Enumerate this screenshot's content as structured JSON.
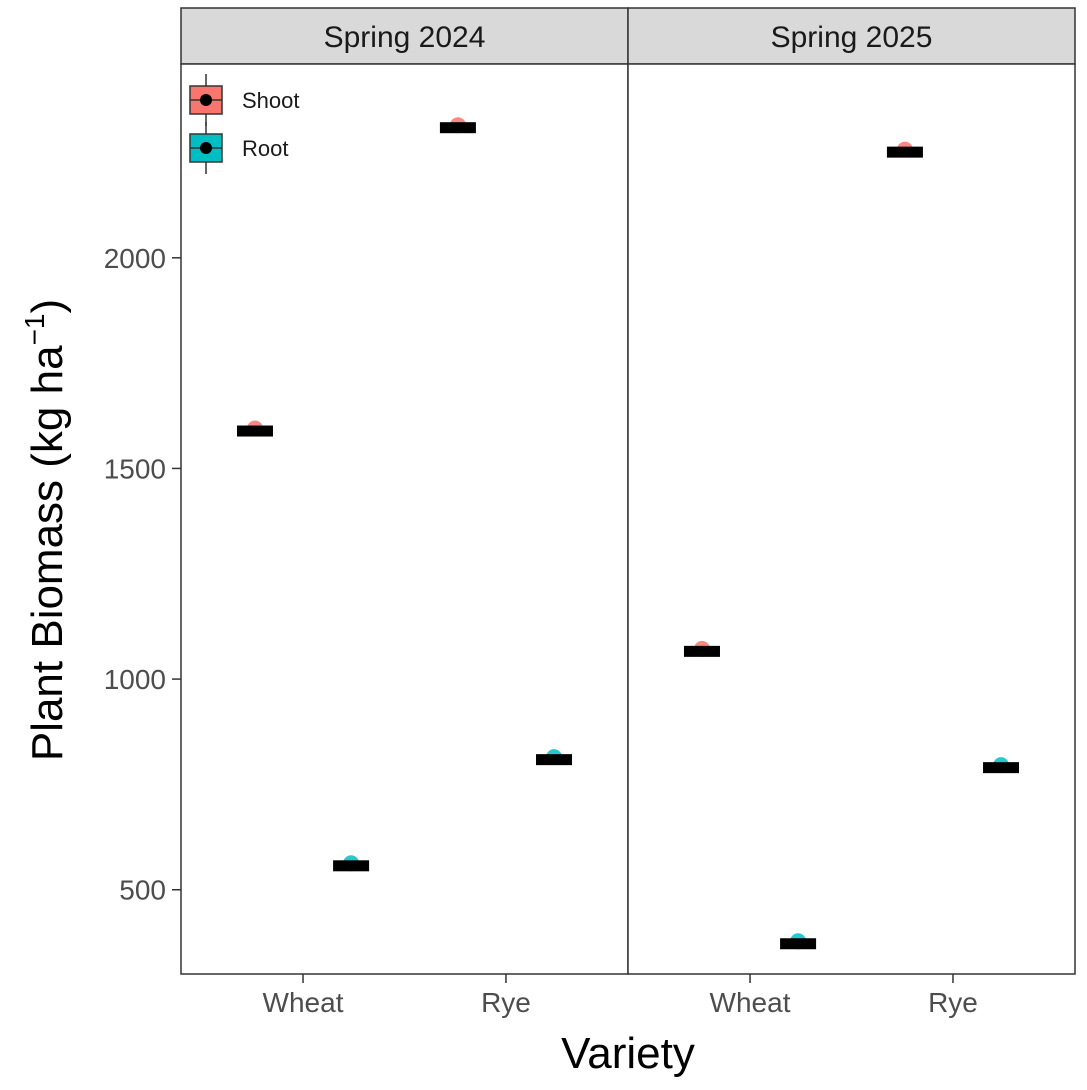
{
  "chart_data": {
    "type": "scatter",
    "title": "",
    "xlabel": "Variety",
    "ylabel": "Plant Biomass (kg ha",
    "ylabel_superscript": "−1",
    "ylabel_close": ")",
    "ylim": [
      300,
      2460
    ],
    "yticks": [
      "500",
      "1000",
      "1500",
      "2000"
    ],
    "ytick_values": [
      500,
      1000,
      1500,
      2000
    ],
    "categories": [
      "Wheat",
      "Rye"
    ],
    "legend": {
      "position": "top-left",
      "entries": [
        {
          "name": "Shoot",
          "color": "#F8766D"
        },
        {
          "name": "Root",
          "color": "#00BFC4"
        }
      ]
    },
    "grid": false,
    "panels": [
      {
        "label": "Spring 2024",
        "points": [
          {
            "variety": "Wheat",
            "part": "Shoot",
            "value": 1590
          },
          {
            "variety": "Wheat",
            "part": "Root",
            "value": 558
          },
          {
            "variety": "Rye",
            "part": "Shoot",
            "value": 2310
          },
          {
            "variety": "Rye",
            "part": "Root",
            "value": 810
          }
        ]
      },
      {
        "label": "Spring 2025",
        "points": [
          {
            "variety": "Wheat",
            "part": "Shoot",
            "value": 1067
          },
          {
            "variety": "Wheat",
            "part": "Root",
            "value": 373
          },
          {
            "variety": "Rye",
            "part": "Shoot",
            "value": 2252
          },
          {
            "variety": "Rye",
            "part": "Root",
            "value": 791
          }
        ]
      }
    ]
  }
}
